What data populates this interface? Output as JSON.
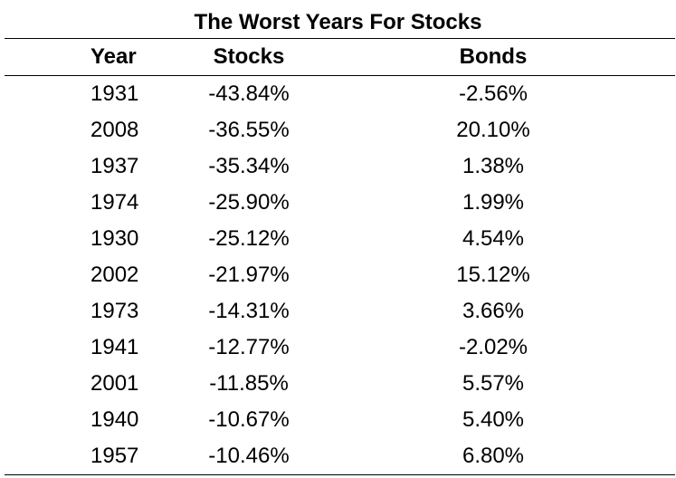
{
  "title": "The Worst Years For Stocks",
  "headers": {
    "year": "Year",
    "stocks": "Stocks",
    "bonds": "Bonds"
  },
  "chart_data": {
    "type": "table",
    "title": "The Worst Years For Stocks",
    "columns": [
      "Year",
      "Stocks",
      "Bonds"
    ],
    "rows": [
      {
        "year": "1931",
        "stocks": "-43.84%",
        "bonds": "-2.56%"
      },
      {
        "year": "2008",
        "stocks": "-36.55%",
        "bonds": "20.10%"
      },
      {
        "year": "1937",
        "stocks": "-35.34%",
        "bonds": "1.38%"
      },
      {
        "year": "1974",
        "stocks": "-25.90%",
        "bonds": "1.99%"
      },
      {
        "year": "1930",
        "stocks": "-25.12%",
        "bonds": "4.54%"
      },
      {
        "year": "2002",
        "stocks": "-21.97%",
        "bonds": "15.12%"
      },
      {
        "year": "1973",
        "stocks": "-14.31%",
        "bonds": "3.66%"
      },
      {
        "year": "1941",
        "stocks": "-12.77%",
        "bonds": "-2.02%"
      },
      {
        "year": "2001",
        "stocks": "-11.85%",
        "bonds": "5.57%"
      },
      {
        "year": "1940",
        "stocks": "-10.67%",
        "bonds": "5.40%"
      },
      {
        "year": "1957",
        "stocks": "-10.46%",
        "bonds": "6.80%"
      }
    ]
  }
}
